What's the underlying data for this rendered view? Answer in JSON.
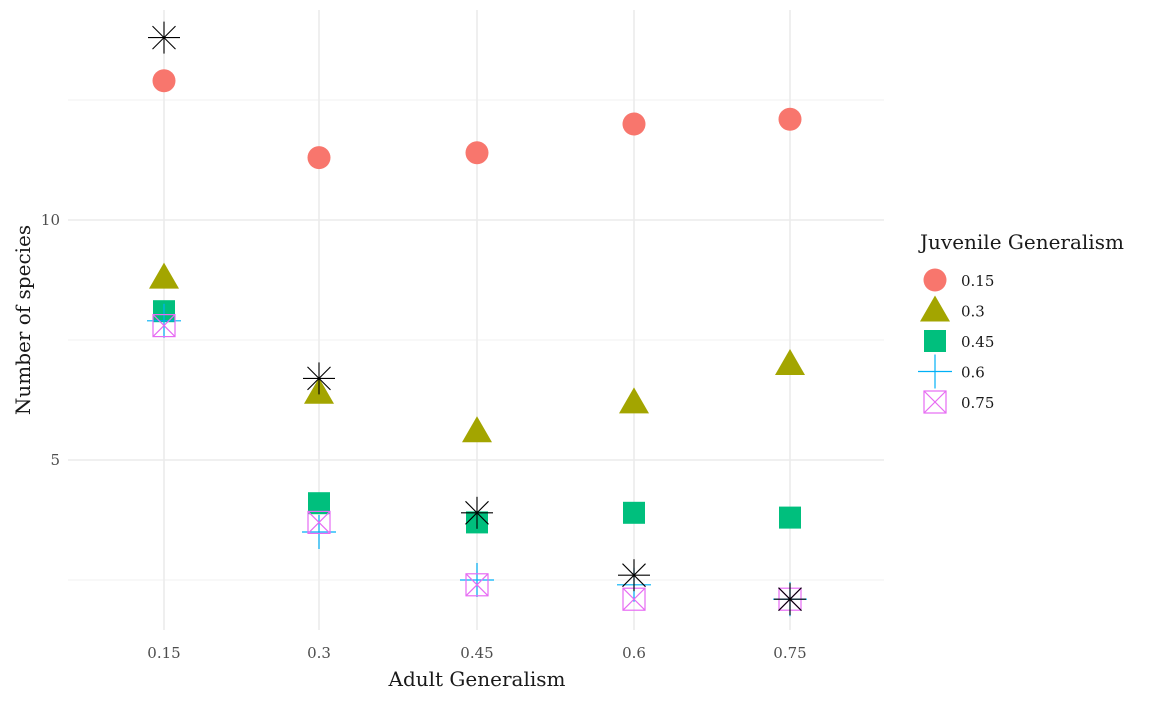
{
  "chart_data": {
    "type": "scatter",
    "title": "",
    "xlabel": "Adult Generalism",
    "ylabel": "Number of species",
    "x": [
      0.15,
      0.3,
      0.45,
      0.6,
      0.75
    ],
    "x_tick_labels": [
      "0.15",
      "0.3",
      "0.45",
      "0.6",
      "0.75"
    ],
    "ylim": [
      2.0,
      14.6
    ],
    "y_ticks": [
      5,
      10
    ],
    "y_tick_labels": [
      "5",
      "10"
    ],
    "y_minor_grid": [
      2.5,
      7.5,
      12.5
    ],
    "grid": true,
    "legend": {
      "title": "Juvenile Generalism",
      "position": "right"
    },
    "series": [
      {
        "name": "0.15",
        "shape": "circle",
        "color": "#f8766d",
        "values": [
          12.9,
          11.3,
          11.4,
          12.0,
          12.1
        ]
      },
      {
        "name": "0.3",
        "shape": "triangle",
        "color": "#a3a500",
        "values": [
          8.8,
          6.4,
          5.6,
          6.2,
          7.0
        ]
      },
      {
        "name": "0.45",
        "shape": "square",
        "color": "#00bf7d",
        "values": [
          8.1,
          4.1,
          3.7,
          3.9,
          3.8
        ]
      },
      {
        "name": "0.6",
        "shape": "plus",
        "color": "#00b0f6",
        "values": [
          7.9,
          3.5,
          2.5,
          2.4,
          2.1
        ]
      },
      {
        "name": "0.75",
        "shape": "square-cross",
        "color": "#e76bf3",
        "values": [
          7.8,
          3.7,
          2.4,
          2.1,
          2.1
        ]
      }
    ],
    "unlabeled_series": [
      {
        "shape": "asterisk",
        "color": "#000000",
        "values": [
          13.8,
          6.7,
          3.9,
          2.6,
          2.1
        ]
      }
    ]
  }
}
